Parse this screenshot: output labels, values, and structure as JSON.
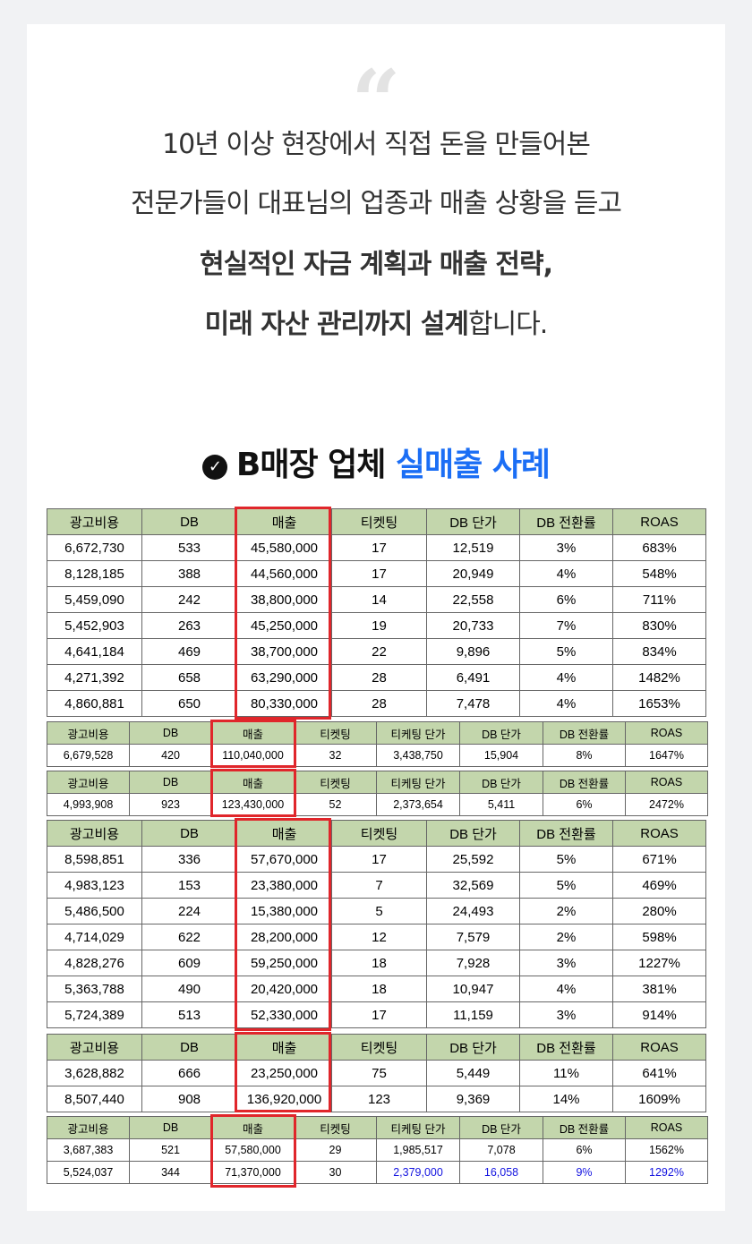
{
  "intro": {
    "quote_mark": "“",
    "line1": "10년 이상 현장에서 직접 돈을 만들어본",
    "line2": "전문가들이 대표님의 업종과 매출 상황을 듣고",
    "line3_bold": "현실적인 자금 계획과 매출 전략,",
    "line4_bold": "미래 자산 관리까지 설계",
    "line4_rest": "합니다."
  },
  "heading": {
    "check_icon": "check-circle-icon",
    "text_dark": "B매장 업체 ",
    "text_accent": "실매출 사례",
    "accent_color": "#1b6ef5"
  },
  "table1": {
    "headers": [
      "광고비용",
      "DB",
      "매출",
      "티켓팅",
      "DB 단가",
      "DB 전환률",
      "ROAS"
    ],
    "rows": [
      [
        "6,672,730",
        "533",
        "45,580,000",
        "17",
        "12,519",
        "3%",
        "683%"
      ],
      [
        "8,128,185",
        "388",
        "44,560,000",
        "17",
        "20,949",
        "4%",
        "548%"
      ],
      [
        "5,459,090",
        "242",
        "38,800,000",
        "14",
        "22,558",
        "6%",
        "711%"
      ],
      [
        "5,452,903",
        "263",
        "45,250,000",
        "19",
        "20,733",
        "7%",
        "830%"
      ],
      [
        "4,641,184",
        "469",
        "38,700,000",
        "22",
        "9,896",
        "5%",
        "834%"
      ],
      [
        "4,271,392",
        "658",
        "63,290,000",
        "28",
        "6,491",
        "4%",
        "1482%"
      ],
      [
        "4,860,881",
        "650",
        "80,330,000",
        "28",
        "7,478",
        "4%",
        "1653%"
      ]
    ]
  },
  "table2": {
    "headers": [
      "광고비용",
      "DB",
      "매출",
      "티켓팅",
      "티케팅 단가",
      "DB 단가",
      "DB 전환률",
      "ROAS"
    ],
    "rows": [
      [
        "6,679,528",
        "420",
        "110,040,000",
        "32",
        "3,438,750",
        "15,904",
        "8%",
        "1647%"
      ]
    ]
  },
  "table3": {
    "headers": [
      "광고비용",
      "DB",
      "매출",
      "티켓팅",
      "티케팅 단가",
      "DB 단가",
      "DB 전환률",
      "ROAS"
    ],
    "rows": [
      [
        "4,993,908",
        "923",
        "123,430,000",
        "52",
        "2,373,654",
        "5,411",
        "6%",
        "2472%"
      ]
    ]
  },
  "table4": {
    "headers": [
      "광고비용",
      "DB",
      "매출",
      "티켓팅",
      "DB 단가",
      "DB 전환률",
      "ROAS"
    ],
    "rows": [
      [
        "8,598,851",
        "336",
        "57,670,000",
        "17",
        "25,592",
        "5%",
        "671%"
      ],
      [
        "4,983,123",
        "153",
        "23,380,000",
        "7",
        "32,569",
        "5%",
        "469%"
      ],
      [
        "5,486,500",
        "224",
        "15,380,000",
        "5",
        "24,493",
        "2%",
        "280%"
      ],
      [
        "4,714,029",
        "622",
        "28,200,000",
        "12",
        "7,579",
        "2%",
        "598%"
      ],
      [
        "4,828,276",
        "609",
        "59,250,000",
        "18",
        "7,928",
        "3%",
        "1227%"
      ],
      [
        "5,363,788",
        "490",
        "20,420,000",
        "18",
        "10,947",
        "4%",
        "381%"
      ],
      [
        "5,724,389",
        "513",
        "52,330,000",
        "17",
        "11,159",
        "3%",
        "914%"
      ]
    ]
  },
  "table5": {
    "headers": [
      "광고비용",
      "DB",
      "매출",
      "티켓팅",
      "DB 단가",
      "DB 전환률",
      "ROAS"
    ],
    "rows": [
      [
        "3,628,882",
        "666",
        "23,250,000",
        "75",
        "5,449",
        "11%",
        "641%"
      ],
      [
        "8,507,440",
        "908",
        "136,920,000",
        "123",
        "9,369",
        "14%",
        "1609%"
      ]
    ],
    "highlight_color": "#1414e0"
  },
  "table6": {
    "headers": [
      "광고비용",
      "DB",
      "매출",
      "티켓팅",
      "티케팅 단가",
      "DB 단가",
      "DB 전환률",
      "ROAS"
    ],
    "rows": [
      [
        "3,687,383",
        "521",
        "57,580,000",
        "29",
        "1,985,517",
        "7,078",
        "6%",
        "1562%"
      ],
      [
        "5,524,037",
        "344",
        "71,370,000",
        "30",
        "2,379,000",
        "16,058",
        "9%",
        "1292%"
      ]
    ]
  }
}
